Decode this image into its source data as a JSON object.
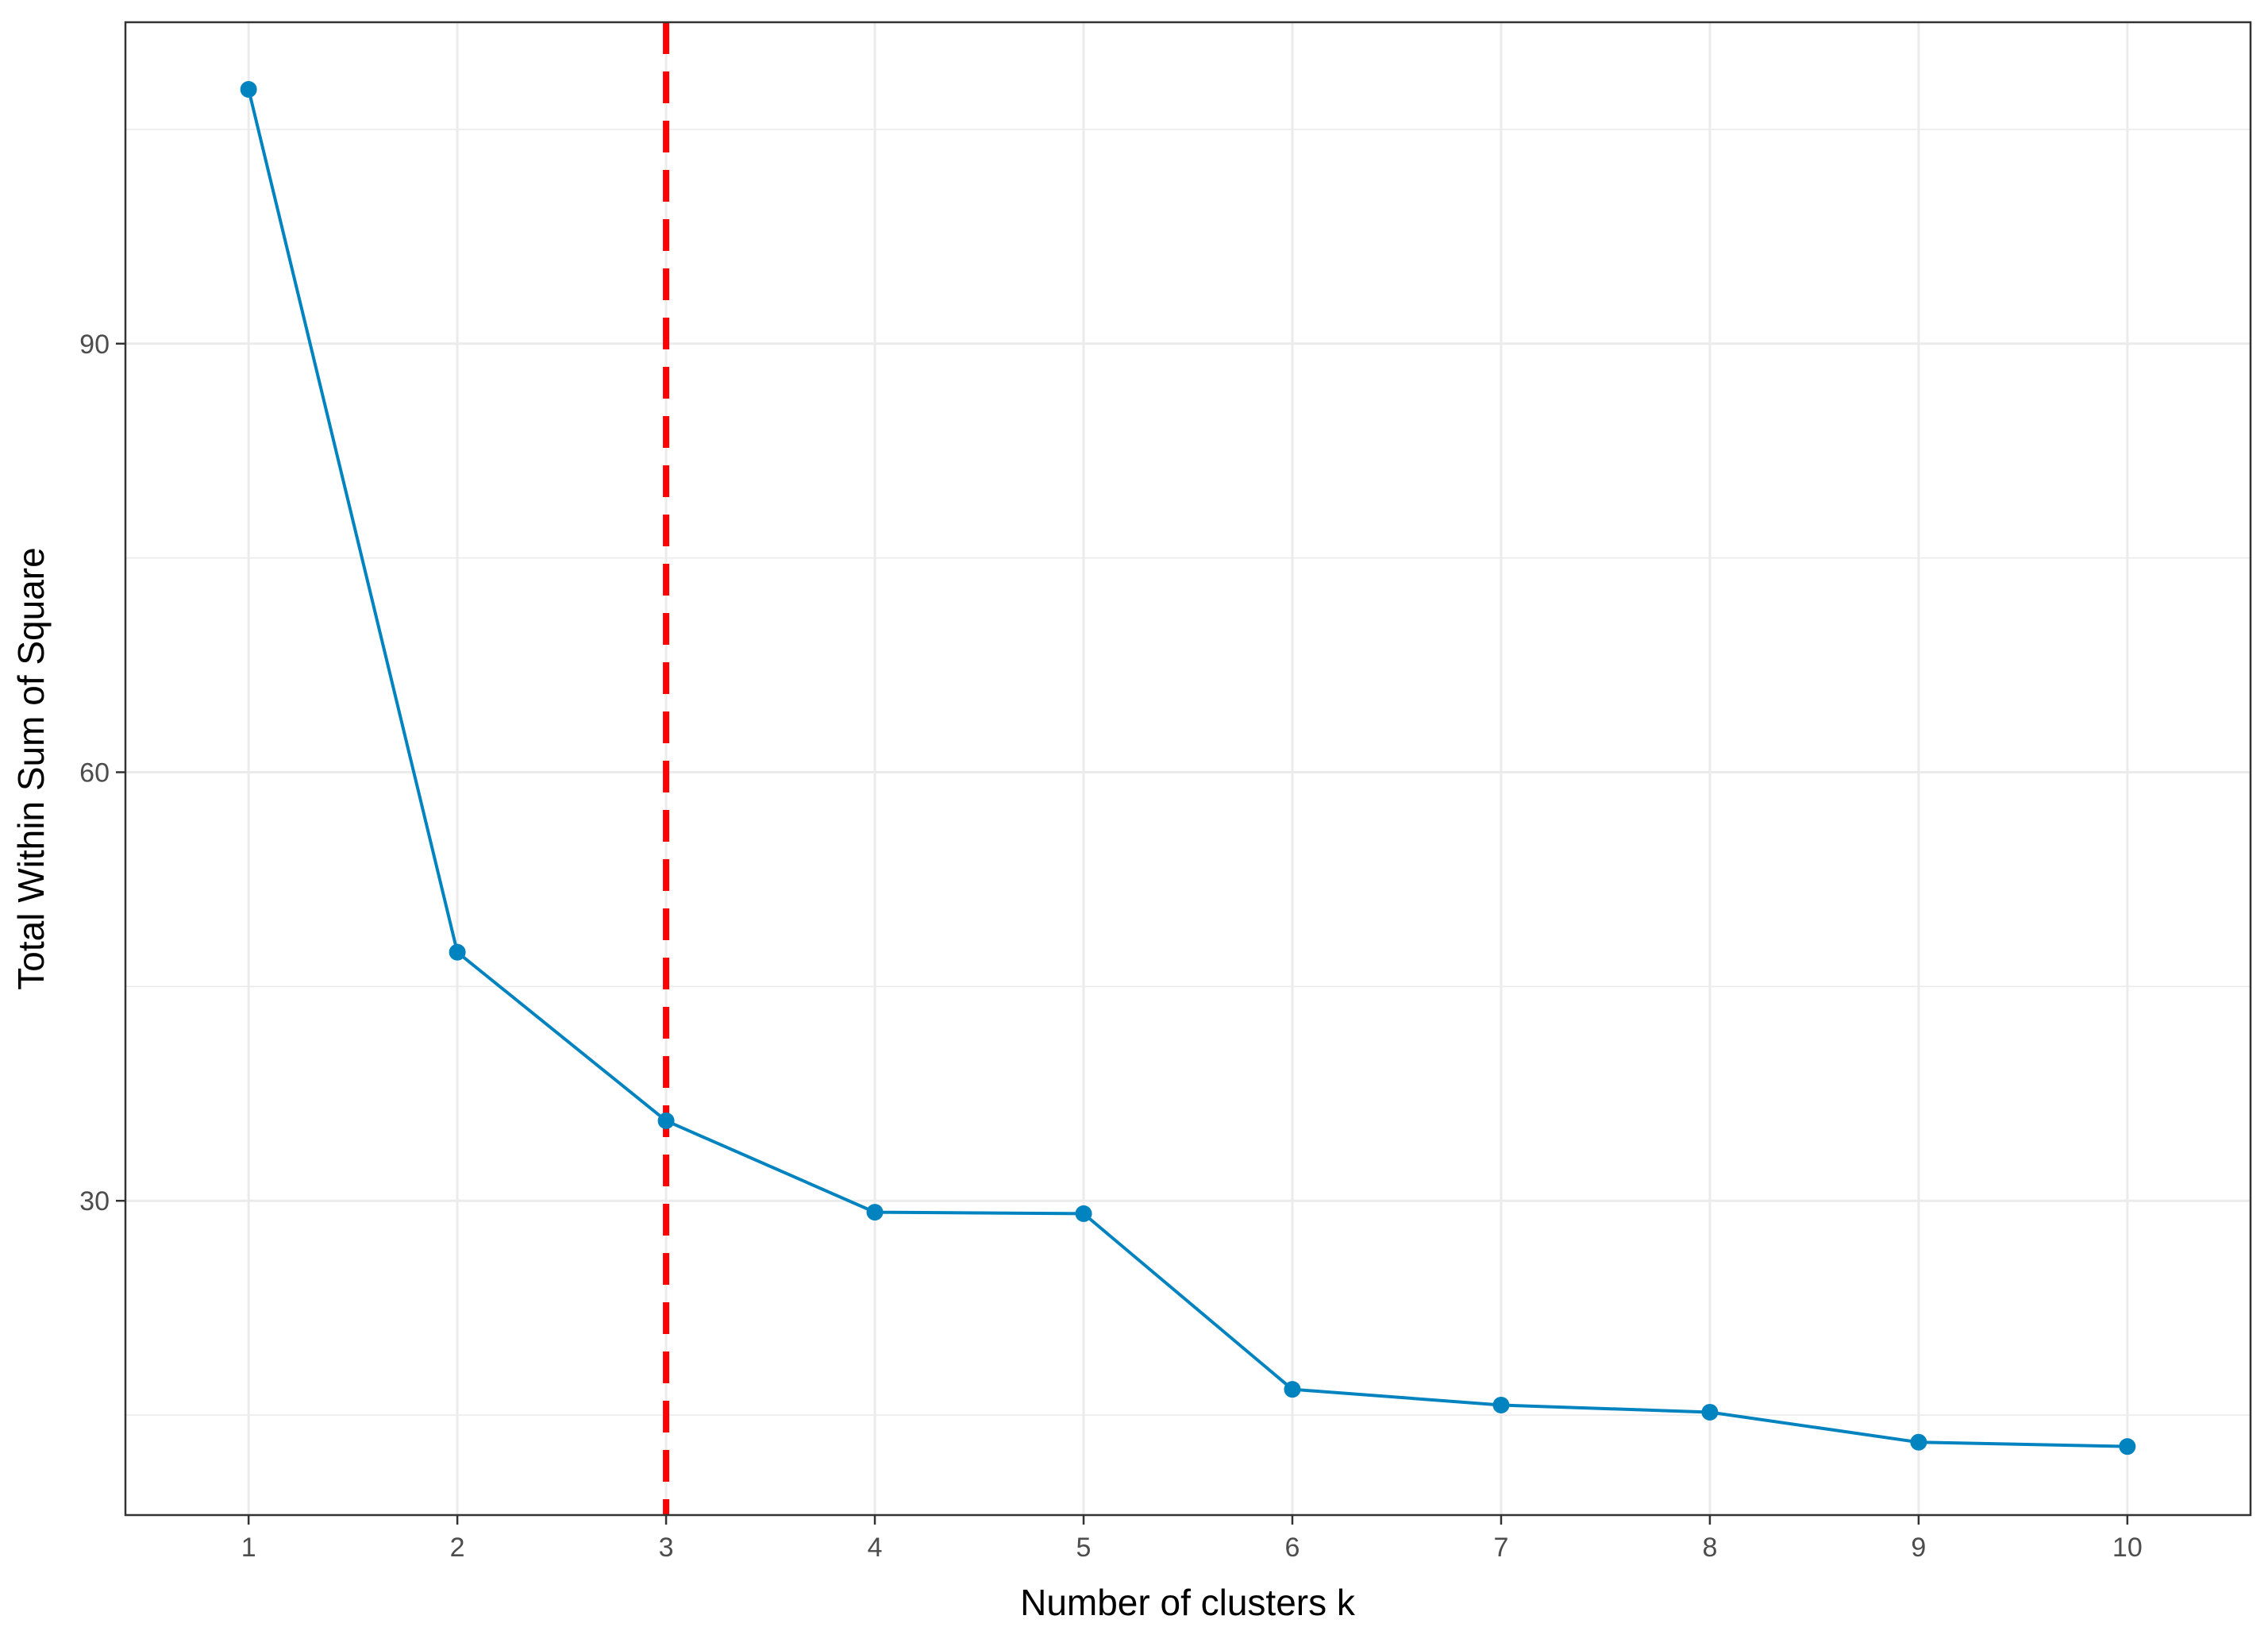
{
  "chart_data": {
    "type": "line",
    "title": "",
    "xlabel": "Number of clusters k",
    "ylabel": "Total Within Sum of Square",
    "x": [
      1,
      2,
      3,
      4,
      5,
      6,
      7,
      8,
      9,
      10
    ],
    "xticks": [
      "1",
      "2",
      "3",
      "4",
      "5",
      "6",
      "7",
      "8",
      "9",
      "10"
    ],
    "yticks": [
      30,
      60,
      90
    ],
    "xlim": [
      0.41,
      10.59
    ],
    "ylim": [
      8,
      112.5
    ],
    "grid": true,
    "legend": "none",
    "series": [
      {
        "values": [
          107.8,
          47.4,
          35.6,
          29.2,
          29.1,
          16.8,
          15.7,
          15.2,
          13.1,
          12.8
        ],
        "color": "#0083BF"
      }
    ],
    "reference_lines": [
      {
        "orientation": "vertical",
        "x": 3,
        "style": "dashed",
        "color": "#FF0000"
      }
    ],
    "colors": {
      "line": "#0083BF",
      "reference": "#FF0000",
      "grid": "#EBEBEB",
      "panel_border": "#333333",
      "tick_text": "#4D4D4D"
    }
  }
}
